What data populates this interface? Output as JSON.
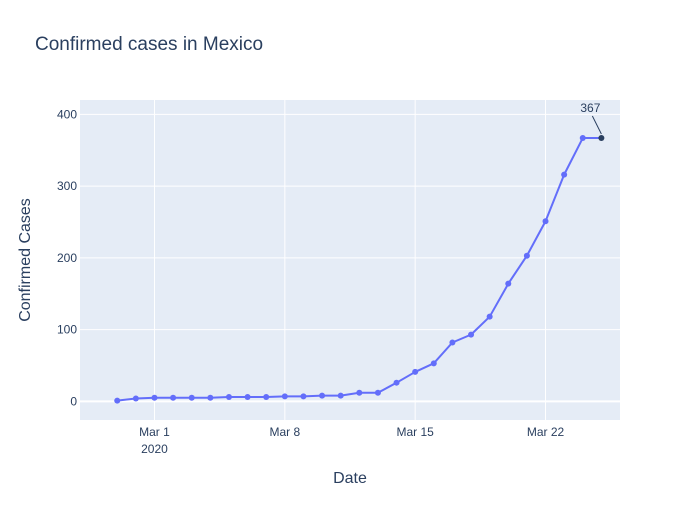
{
  "chart_data": {
    "type": "line",
    "title": "Confirmed cases in Mexico",
    "xlabel": "Date",
    "ylabel": "Confirmed Cases",
    "x_start": "2020-02-28",
    "x_range": [
      "2020-02-26",
      "2020-03-26"
    ],
    "ylim": [
      -26,
      420
    ],
    "grid": true,
    "x_ticks": [
      {
        "date": "2020-03-01",
        "label": "Mar 1",
        "sublabel": "2020"
      },
      {
        "date": "2020-03-08",
        "label": "Mar 8",
        "sublabel": ""
      },
      {
        "date": "2020-03-15",
        "label": "Mar 15",
        "sublabel": ""
      },
      {
        "date": "2020-03-22",
        "label": "Mar 22",
        "sublabel": ""
      }
    ],
    "y_ticks": [
      {
        "value": 0,
        "label": "0"
      },
      {
        "value": 100,
        "label": "100"
      },
      {
        "value": 200,
        "label": "200"
      },
      {
        "value": 300,
        "label": "300"
      },
      {
        "value": 400,
        "label": "400"
      }
    ],
    "series": [
      {
        "color": "#636efa",
        "x": [
          "2020-02-28",
          "2020-02-29",
          "2020-03-01",
          "2020-03-02",
          "2020-03-03",
          "2020-03-04",
          "2020-03-05",
          "2020-03-06",
          "2020-03-07",
          "2020-03-08",
          "2020-03-09",
          "2020-03-10",
          "2020-03-11",
          "2020-03-12",
          "2020-03-13",
          "2020-03-14",
          "2020-03-15",
          "2020-03-16",
          "2020-03-17",
          "2020-03-18",
          "2020-03-19",
          "2020-03-20",
          "2020-03-21",
          "2020-03-22",
          "2020-03-23",
          "2020-03-24",
          "2020-03-25"
        ],
        "values": [
          1,
          4,
          5,
          5,
          5,
          5,
          6,
          6,
          6,
          7,
          7,
          8,
          8,
          12,
          12,
          26,
          41,
          53,
          82,
          93,
          118,
          164,
          203,
          251,
          316,
          367,
          367
        ]
      }
    ],
    "annotations": [
      {
        "x": "2020-03-25",
        "y": 367,
        "text": "367"
      }
    ]
  }
}
